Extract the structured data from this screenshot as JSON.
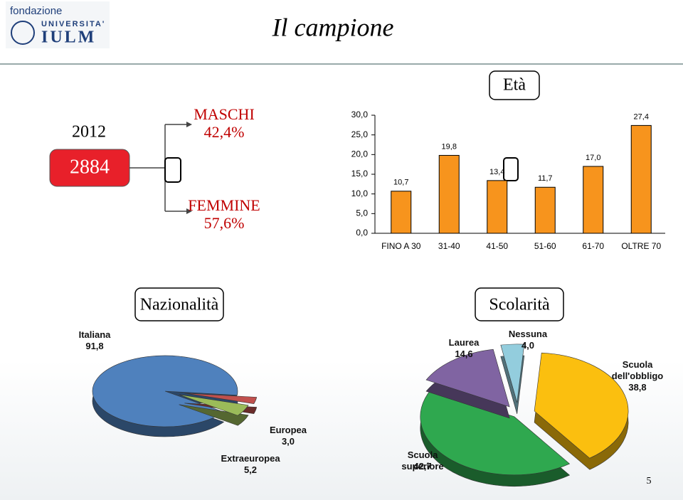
{
  "header": {
    "logo_top": "fondazione",
    "logo_university": "UNIVERSITA'",
    "logo_name": "IULM",
    "title": "Il campione"
  },
  "sample": {
    "year": "2012",
    "total": "2884",
    "groups": [
      {
        "name": "MASCHI",
        "share": "42,4%"
      },
      {
        "name": "FEMMINE",
        "share": "57,6%"
      }
    ]
  },
  "chart_data": [
    {
      "type": "bar",
      "title": "Età",
      "categories": [
        "FINO A 30",
        "31-40",
        "41-50",
        "51-60",
        "61-70",
        "OLTRE 70"
      ],
      "values": [
        10.7,
        19.8,
        13.4,
        11.7,
        17.0,
        27.4
      ],
      "value_labels": [
        "10,7",
        "19,8",
        "13,4",
        "11,7",
        "17,0",
        "27,4"
      ],
      "color": "#f7941d",
      "ylim": [
        0,
        30
      ],
      "yticks": [
        {
          "value": 0,
          "label": "0,0"
        },
        {
          "value": 5,
          "label": "5,0"
        },
        {
          "value": 10,
          "label": "10,0"
        },
        {
          "value": 15,
          "label": "15,0"
        },
        {
          "value": 20,
          "label": "20,0"
        },
        {
          "value": 25,
          "label": "25,0"
        },
        {
          "value": 30,
          "label": "30,0"
        }
      ]
    },
    {
      "type": "pie",
      "title": "Nazionalità",
      "categories": [
        "Italiana",
        "Europea",
        "Extraeuropea"
      ],
      "values": [
        91.8,
        3.0,
        5.2
      ],
      "value_labels": [
        "91,8",
        "3,0",
        "5,2"
      ],
      "colors": [
        "#4f81bd",
        "#c0504d",
        "#9bbb59"
      ]
    },
    {
      "type": "pie",
      "title": "Scolarità",
      "categories": [
        "Nessuna",
        "Scuola dell'obbligo",
        "Scuola superiore",
        "Laurea"
      ],
      "values": [
        4.0,
        38.8,
        42.7,
        14.6
      ],
      "value_labels": [
        "4,0",
        "38,8",
        "42,7",
        "14,6"
      ],
      "colors": [
        "#93cddd",
        "#fbbf0f",
        "#2fa84f",
        "#8064a2"
      ]
    }
  ],
  "page_number": "5"
}
